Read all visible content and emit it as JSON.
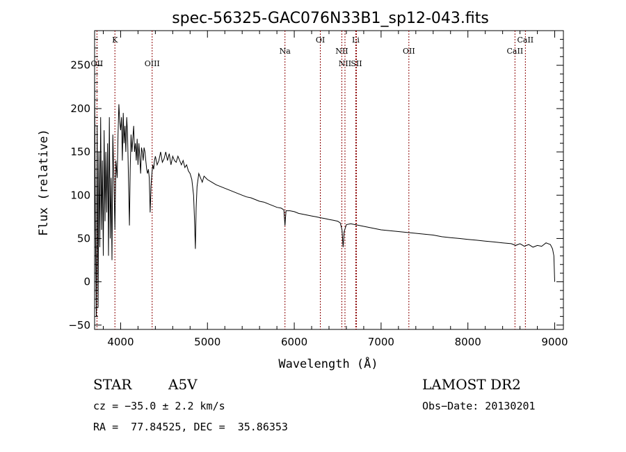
{
  "chart_data": {
    "type": "line",
    "title": "spec-56325-GAC076N33B1_sp12-043.fits",
    "xlabel": "Wavelength (Å)",
    "ylabel": "Flux (relative)",
    "xlim": [
      3700,
      9100
    ],
    "ylim": [
      -55,
      290
    ],
    "xticks": [
      4000,
      5000,
      6000,
      7000,
      8000,
      9000
    ],
    "yticks": [
      -50,
      0,
      50,
      100,
      150,
      200,
      250
    ],
    "grid": false,
    "series": [
      {
        "points": [
          [
            3700,
            240
          ],
          [
            3710,
            60
          ],
          [
            3720,
            -40
          ],
          [
            3730,
            180
          ],
          [
            3740,
            -30
          ],
          [
            3750,
            150
          ],
          [
            3760,
            40
          ],
          [
            3770,
            190
          ],
          [
            3780,
            60
          ],
          [
            3790,
            140
          ],
          [
            3800,
            30
          ],
          [
            3810,
            175
          ],
          [
            3820,
            70
          ],
          [
            3830,
            150
          ],
          [
            3840,
            80
          ],
          [
            3850,
            160
          ],
          [
            3860,
            30
          ],
          [
            3870,
            190
          ],
          [
            3880,
            50
          ],
          [
            3890,
            120
          ],
          [
            3900,
            25
          ],
          [
            3910,
            170
          ],
          [
            3920,
            130
          ],
          [
            3934,
            60
          ],
          [
            3945,
            140
          ],
          [
            3960,
            120
          ],
          [
            3970,
            170
          ],
          [
            3980,
            205
          ],
          [
            3990,
            185
          ],
          [
            4000,
            175
          ],
          [
            4010,
            190
          ],
          [
            4020,
            140
          ],
          [
            4030,
            195
          ],
          [
            4040,
            160
          ],
          [
            4050,
            180
          ],
          [
            4060,
            150
          ],
          [
            4070,
            190
          ],
          [
            4080,
            170
          ],
          [
            4090,
            120
          ],
          [
            4101,
            65
          ],
          [
            4110,
            130
          ],
          [
            4120,
            170
          ],
          [
            4130,
            150
          ],
          [
            4140,
            165
          ],
          [
            4150,
            180
          ],
          [
            4160,
            150
          ],
          [
            4170,
            160
          ],
          [
            4180,
            140
          ],
          [
            4190,
            165
          ],
          [
            4200,
            135
          ],
          [
            4210,
            160
          ],
          [
            4220,
            145
          ],
          [
            4230,
            125
          ],
          [
            4240,
            155
          ],
          [
            4250,
            150
          ],
          [
            4260,
            140
          ],
          [
            4270,
            155
          ],
          [
            4280,
            150
          ],
          [
            4290,
            140
          ],
          [
            4300,
            130
          ],
          [
            4310,
            125
          ],
          [
            4320,
            130
          ],
          [
            4330,
            120
          ],
          [
            4340,
            80
          ],
          [
            4350,
            110
          ],
          [
            4360,
            125
          ],
          [
            4370,
            135
          ],
          [
            4380,
            130
          ],
          [
            4390,
            140
          ],
          [
            4400,
            145
          ],
          [
            4420,
            135
          ],
          [
            4440,
            140
          ],
          [
            4460,
            150
          ],
          [
            4480,
            138
          ],
          [
            4500,
            142
          ],
          [
            4520,
            150
          ],
          [
            4540,
            140
          ],
          [
            4560,
            148
          ],
          [
            4580,
            135
          ],
          [
            4600,
            145
          ],
          [
            4620,
            140
          ],
          [
            4640,
            138
          ],
          [
            4660,
            145
          ],
          [
            4680,
            140
          ],
          [
            4700,
            135
          ],
          [
            4720,
            140
          ],
          [
            4740,
            132
          ],
          [
            4760,
            135
          ],
          [
            4780,
            128
          ],
          [
            4800,
            125
          ],
          [
            4820,
            118
          ],
          [
            4840,
            100
          ],
          [
            4850,
            75
          ],
          [
            4861,
            38
          ],
          [
            4870,
            85
          ],
          [
            4880,
            110
          ],
          [
            4900,
            125
          ],
          [
            4920,
            120
          ],
          [
            4940,
            115
          ],
          [
            4960,
            122
          ],
          [
            5000,
            118
          ],
          [
            5050,
            115
          ],
          [
            5100,
            112
          ],
          [
            5150,
            110
          ],
          [
            5200,
            108
          ],
          [
            5250,
            106
          ],
          [
            5300,
            104
          ],
          [
            5350,
            102
          ],
          [
            5400,
            100
          ],
          [
            5450,
            98
          ],
          [
            5500,
            97
          ],
          [
            5550,
            95
          ],
          [
            5600,
            93
          ],
          [
            5650,
            92
          ],
          [
            5700,
            90
          ],
          [
            5750,
            88
          ],
          [
            5800,
            86
          ],
          [
            5850,
            85
          ],
          [
            5880,
            83
          ],
          [
            5893,
            65
          ],
          [
            5905,
            82
          ],
          [
            5950,
            82
          ],
          [
            6000,
            81
          ],
          [
            6050,
            79
          ],
          [
            6100,
            78
          ],
          [
            6150,
            77
          ],
          [
            6200,
            76
          ],
          [
            6250,
            75
          ],
          [
            6300,
            74
          ],
          [
            6350,
            73
          ],
          [
            6400,
            72
          ],
          [
            6450,
            71
          ],
          [
            6500,
            70
          ],
          [
            6530,
            68
          ],
          [
            6550,
            60
          ],
          [
            6563,
            40
          ],
          [
            6575,
            58
          ],
          [
            6600,
            66
          ],
          [
            6650,
            67
          ],
          [
            6700,
            66
          ],
          [
            6750,
            65
          ],
          [
            6800,
            64
          ],
          [
            6850,
            63
          ],
          [
            6900,
            62
          ],
          [
            6950,
            61
          ],
          [
            7000,
            60
          ],
          [
            7100,
            59
          ],
          [
            7200,
            58
          ],
          [
            7300,
            57
          ],
          [
            7400,
            56
          ],
          [
            7500,
            55
          ],
          [
            7600,
            54
          ],
          [
            7700,
            52
          ],
          [
            7800,
            51
          ],
          [
            7900,
            50
          ],
          [
            8000,
            49
          ],
          [
            8100,
            48
          ],
          [
            8200,
            47
          ],
          [
            8300,
            46
          ],
          [
            8400,
            45
          ],
          [
            8500,
            44
          ],
          [
            8550,
            42
          ],
          [
            8600,
            44
          ],
          [
            8650,
            41
          ],
          [
            8700,
            43
          ],
          [
            8750,
            40
          ],
          [
            8800,
            42
          ],
          [
            8850,
            41
          ],
          [
            8900,
            45
          ],
          [
            8950,
            43
          ],
          [
            8975,
            38
          ],
          [
            8990,
            30
          ],
          [
            9000,
            0
          ]
        ]
      }
    ],
    "line_markers": [
      {
        "label": "OII",
        "x": 3727,
        "row": 2
      },
      {
        "label": "K",
        "x": 3934,
        "row": 0
      },
      {
        "label": "OIII",
        "x": 4363,
        "row": 2
      },
      {
        "label": "Na",
        "x": 5893,
        "row": 1
      },
      {
        "label": "OI",
        "x": 6300,
        "row": 0
      },
      {
        "label": "NII",
        "x": 6548,
        "row": 1
      },
      {
        "label": "NII",
        "x": 6584,
        "row": 2
      },
      {
        "label": "Li",
        "x": 6708,
        "row": 0
      },
      {
        "label": "SII",
        "x": 6716,
        "row": 2
      },
      {
        "label": "OII",
        "x": 7320,
        "row": 1
      },
      {
        "label": "CaII",
        "x": 8542,
        "row": 1
      },
      {
        "label": "CaII",
        "x": 8662,
        "row": 0
      }
    ]
  },
  "info": {
    "class": "STAR",
    "subclass": "A5V",
    "survey": "LAMOST DR2",
    "cz": "cz = −35.0 ± 2.2 km/s",
    "obs_date": "Obs−Date: 20130201",
    "radec": "RA =  77.84525, DEC =  35.86353"
  }
}
